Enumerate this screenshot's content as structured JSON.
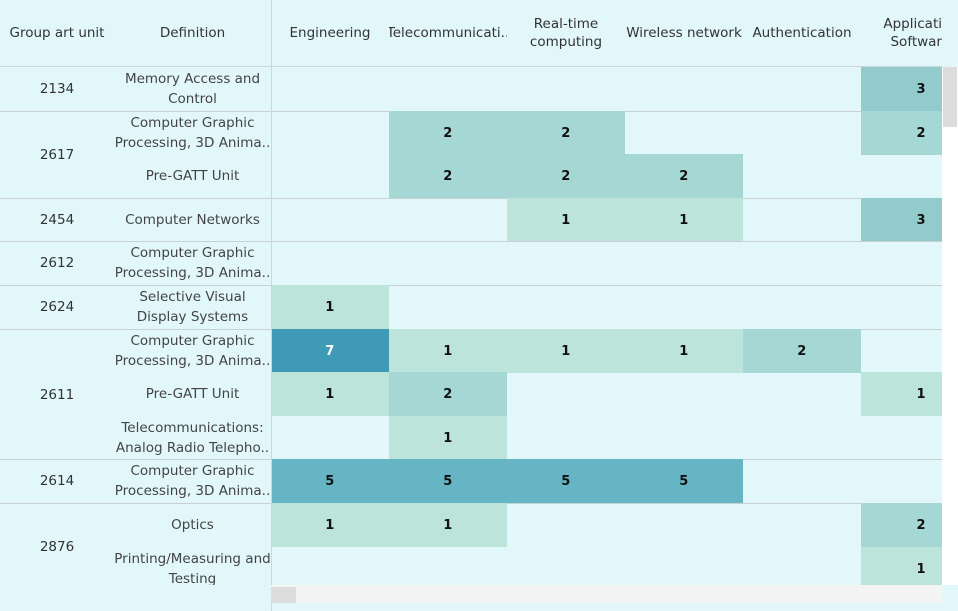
{
  "chart_data": {
    "type": "table",
    "row_headers": [
      "Group art unit",
      "Definition"
    ],
    "columns": [
      "Engineering",
      "Telecommunicati..",
      "Real-time computing",
      "Wireless network",
      "Authentication",
      "Applicati Softwar"
    ],
    "groups": [
      {
        "unit": "2134",
        "rows": [
          {
            "definition": "Memory Access and Control",
            "values": [
              null,
              null,
              null,
              null,
              null,
              3
            ]
          }
        ]
      },
      {
        "unit": "2617",
        "rows": [
          {
            "definition": "Computer Graphic Processing, 3D Anima..",
            "values": [
              null,
              2,
              2,
              null,
              null,
              2
            ]
          },
          {
            "definition": "Pre-GATT Unit",
            "values": [
              null,
              2,
              2,
              2,
              null,
              null
            ]
          }
        ]
      },
      {
        "unit": "2454",
        "rows": [
          {
            "definition": "Computer Networks",
            "values": [
              null,
              null,
              1,
              1,
              null,
              3
            ]
          }
        ]
      },
      {
        "unit": "2612",
        "rows": [
          {
            "definition": "Computer Graphic Processing, 3D Anima..",
            "values": [
              null,
              null,
              null,
              null,
              null,
              null
            ]
          }
        ]
      },
      {
        "unit": "2624",
        "rows": [
          {
            "definition": "Selective Visual Display Systems",
            "values": [
              1,
              null,
              null,
              null,
              null,
              null
            ]
          }
        ]
      },
      {
        "unit": "2611",
        "rows": [
          {
            "definition": "Computer Graphic Processing, 3D Anima..",
            "values": [
              7,
              1,
              1,
              1,
              2,
              null
            ]
          },
          {
            "definition": "Pre-GATT Unit",
            "values": [
              1,
              2,
              null,
              null,
              null,
              1
            ]
          },
          {
            "definition": "Telecommunications: Analog Radio Telepho..",
            "values": [
              null,
              1,
              null,
              null,
              null,
              null
            ]
          }
        ]
      },
      {
        "unit": "2614",
        "rows": [
          {
            "definition": "Computer Graphic Processing, 3D Anima..",
            "values": [
              5,
              5,
              5,
              5,
              null,
              null
            ]
          }
        ]
      },
      {
        "unit": "2876",
        "rows": [
          {
            "definition": "Optics",
            "values": [
              1,
              1,
              null,
              null,
              null,
              2
            ]
          },
          {
            "definition": "Printing/Measuring and Testing",
            "values": [
              null,
              null,
              null,
              null,
              null,
              1
            ]
          }
        ]
      }
    ],
    "colors": {
      "background": "#e1f7fa",
      "scale": {
        "1": "#bde4da",
        "2": "#a5d8d5",
        "3": "#93cbcd",
        "5": "#65b5c4",
        "7": "#3f9ab6"
      }
    }
  }
}
